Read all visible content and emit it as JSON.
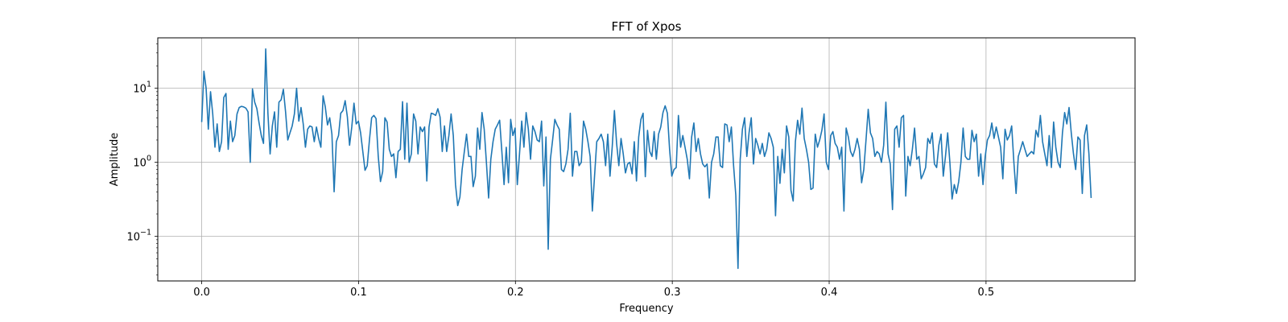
{
  "chart_data": {
    "type": "line",
    "title": "FFT of Xpos",
    "xlabel": "Frequency",
    "ylabel": "Amplitude",
    "xlim": [
      -0.028,
      0.595
    ],
    "ylim": [
      0.025,
      48
    ],
    "yscale": "log",
    "grid": true,
    "x_ticks": [
      {
        "value": 0.0,
        "label": "0.0"
      },
      {
        "value": 0.1,
        "label": "0.1"
      },
      {
        "value": 0.2,
        "label": "0.2"
      },
      {
        "value": 0.3,
        "label": "0.3"
      },
      {
        "value": 0.4,
        "label": "0.4"
      },
      {
        "value": 0.5,
        "label": "0.5"
      }
    ],
    "y_ticks": [
      {
        "value": 0.1,
        "base": "10",
        "exp": "−1"
      },
      {
        "value": 1,
        "base": "10",
        "exp": "0"
      },
      {
        "value": 10,
        "base": "10",
        "exp": "1"
      }
    ],
    "series": [
      {
        "color": "#1f77b4",
        "x_start": 0.0,
        "x_end": 0.567,
        "values": [
          3.5,
          17,
          10,
          2.8,
          9,
          4.5,
          1.6,
          3.3,
          1.4,
          1.9,
          7.5,
          8.5,
          1.5,
          3.6,
          1.9,
          2.3,
          4.5,
          5.5,
          5.7,
          5.6,
          5.4,
          4.8,
          1.0,
          9.8,
          6.5,
          5.3,
          3.4,
          2.3,
          1.8,
          34,
          4.6,
          1.3,
          3.1,
          4.8,
          1.6,
          6.5,
          7.0,
          9.7,
          4.8,
          2.0,
          2.5,
          3.1,
          4.5,
          10,
          3.6,
          5.5,
          3.3,
          1.6,
          2.8,
          3.1,
          3.0,
          1.9,
          3.0,
          2.1,
          1.6,
          7.9,
          5.6,
          3.2,
          4.0,
          2.4,
          0.4,
          1.9,
          2.3,
          4.6,
          5.0,
          6.8,
          4.1,
          1.7,
          3.0,
          6.3,
          3.3,
          3.6,
          2.5,
          1.4,
          0.78,
          0.9,
          2.0,
          4.0,
          4.3,
          3.9,
          1.2,
          0.55,
          0.75,
          4.0,
          3.5,
          1.5,
          1.2,
          1.3,
          0.62,
          1.4,
          1.5,
          6.6,
          1.1,
          6.3,
          1.0,
          1.3,
          4.5,
          3.6,
          1.3,
          3.0,
          2.6,
          3.0,
          0.56,
          3.0,
          4.6,
          4.5,
          4.3,
          5.3,
          4.1,
          1.4,
          3.1,
          1.4,
          2.3,
          4.5,
          2.3,
          0.5,
          0.26,
          0.34,
          0.8,
          1.4,
          2.4,
          1.2,
          1.2,
          0.47,
          0.65,
          2.9,
          1.5,
          4.7,
          2.8,
          1.0,
          0.33,
          1.1,
          1.9,
          2.8,
          3.2,
          3.7,
          1.4,
          0.5,
          1.6,
          0.53,
          3.8,
          2.3,
          2.9,
          0.5,
          1.3,
          3.6,
          1.6,
          4.7,
          2.8,
          1.1,
          3.1,
          2.6,
          2.0,
          1.9,
          3.6,
          0.48,
          2.2,
          0.067,
          1.1,
          2.0,
          3.8,
          3.2,
          2.8,
          0.8,
          0.75,
          0.95,
          1.5,
          4.6,
          0.65,
          1.4,
          1.4,
          0.9,
          1.0,
          3.6,
          2.8,
          1.9,
          1.2,
          0.22,
          0.65,
          1.9,
          2.1,
          2.4,
          1.9,
          0.9,
          2.4,
          0.65,
          1.6,
          5.0,
          1.8,
          0.9,
          2.1,
          1.3,
          0.72,
          0.95,
          1.0,
          0.7,
          1.9,
          0.56,
          2.2,
          3.8,
          4.6,
          0.64,
          2.7,
          1.4,
          1.2,
          2.6,
          1.1,
          2.4,
          3.0,
          4.7,
          5.8,
          4.6,
          1.5,
          0.65,
          0.8,
          0.85,
          4.3,
          1.6,
          2.3,
          1.6,
          1.1,
          0.6,
          2.2,
          3.4,
          1.4,
          2.1,
          1.3,
          0.95,
          0.87,
          0.95,
          0.33,
          1.0,
          1.3,
          2.2,
          2.2,
          0.9,
          0.85,
          3.3,
          3.2,
          1.9,
          3.0,
          0.9,
          0.36,
          0.037,
          1.1,
          2.8,
          4.0,
          1.2,
          2.5,
          4.0,
          0.95,
          2.1,
          1.7,
          1.3,
          1.8,
          1.2,
          1.5,
          2.5,
          2.1,
          1.6,
          0.19,
          1.2,
          0.52,
          1.5,
          0.72,
          3.1,
          2.2,
          0.42,
          0.3,
          1.9,
          3.7,
          2.4,
          5.4,
          2.1,
          1.5,
          1.0,
          0.43,
          0.45,
          2.4,
          1.6,
          2.0,
          2.7,
          4.5,
          1.0,
          0.8,
          2.3,
          2.6,
          1.8,
          1.6,
          1.1,
          1.6,
          0.22,
          2.9,
          2.2,
          1.4,
          1.2,
          1.5,
          2.1,
          1.5,
          0.53,
          0.8,
          2.0,
          5.2,
          2.5,
          2.1,
          1.2,
          1.4,
          1.3,
          1.0,
          1.7,
          6.5,
          1.3,
          0.95,
          0.23,
          2.8,
          3.1,
          1.6,
          4.0,
          4.3,
          0.35,
          1.2,
          0.9,
          1.5,
          2.9,
          1.1,
          1.2,
          0.6,
          0.7,
          0.85,
          2.1,
          1.8,
          2.5,
          0.95,
          0.85,
          1.7,
          2.4,
          0.65,
          1.2,
          2.5,
          1.0,
          0.32,
          0.5,
          0.38,
          0.55,
          1.0,
          2.9,
          1.2,
          1.1,
          1.1,
          2.7,
          1.9,
          2.4,
          0.65,
          1.3,
          0.5,
          1.2,
          2.0,
          2.3,
          3.4,
          2.1,
          3.0,
          2.2,
          1.6,
          0.6,
          2.8,
          2.0,
          2.3,
          3.1,
          1.0,
          0.38,
          1.2,
          1.5,
          1.9,
          1.5,
          1.2,
          1.3,
          1.4,
          1.3,
          2.7,
          2.2,
          4.3,
          1.9,
          1.3,
          0.9,
          2.3,
          0.85,
          3.5,
          1.6,
          1.0,
          0.85,
          2.5,
          4.7,
          3.3,
          5.5,
          2.5,
          1.3,
          0.8,
          2.2,
          2.0,
          0.38,
          2.3,
          3.2,
          1.3,
          0.33
        ]
      }
    ]
  }
}
